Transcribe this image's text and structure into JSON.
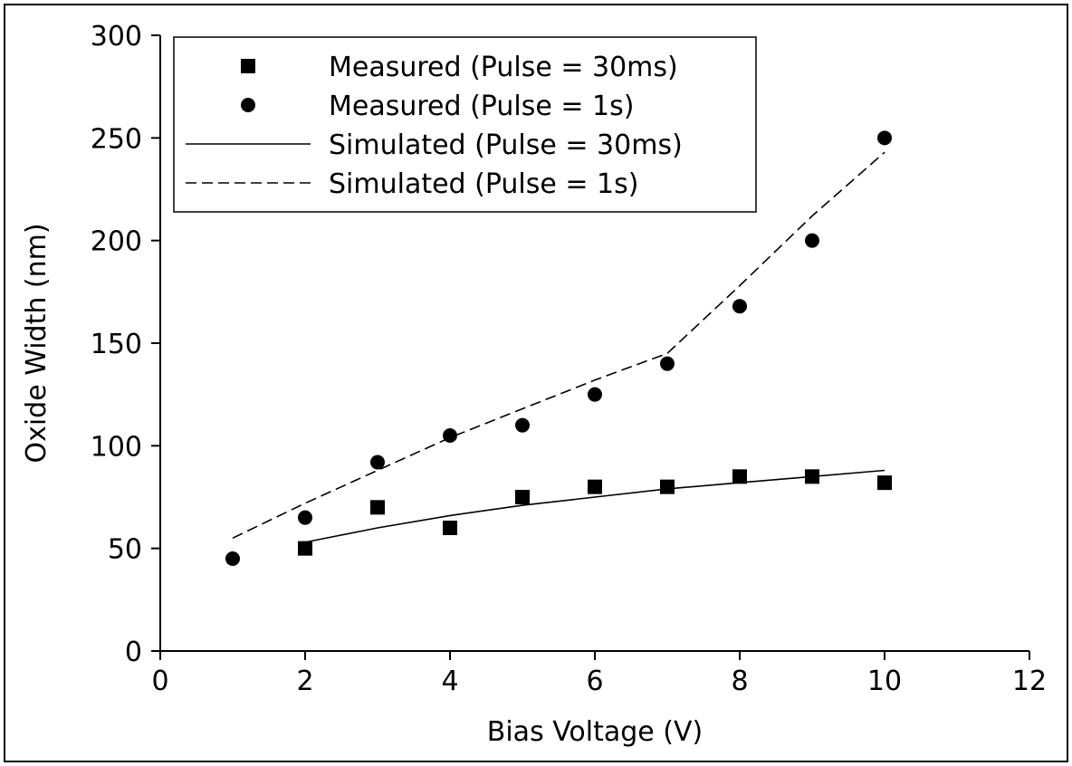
{
  "chart_data": {
    "type": "scatter",
    "title": "",
    "xlabel": "Bias Voltage (V)",
    "ylabel": "Oxide Width (nm)",
    "xlim": [
      0,
      12
    ],
    "ylim": [
      0,
      300
    ],
    "xticks": [
      0,
      2,
      4,
      6,
      8,
      10,
      12
    ],
    "yticks": [
      0,
      50,
      100,
      150,
      200,
      250,
      300
    ],
    "grid": false,
    "legend_position": "top-left",
    "series": [
      {
        "name": "Measured (Pulse = 30ms)",
        "kind": "marker",
        "marker": "square",
        "x": [
          2,
          3,
          4,
          5,
          6,
          7,
          8,
          9,
          10
        ],
        "y": [
          50,
          70,
          60,
          75,
          80,
          80,
          85,
          85,
          82
        ]
      },
      {
        "name": "Measured (Pulse = 1s)",
        "kind": "marker",
        "marker": "circle",
        "x": [
          1,
          2,
          3,
          4,
          5,
          6,
          7,
          8,
          9,
          10
        ],
        "y": [
          45,
          65,
          92,
          105,
          110,
          125,
          140,
          168,
          200,
          250
        ]
      },
      {
        "name": "Simulated (Pulse = 30ms)",
        "kind": "line",
        "dash": "solid",
        "x": [
          2,
          3,
          4,
          5,
          6,
          7,
          8,
          9,
          10
        ],
        "y": [
          53,
          60,
          66,
          71,
          75,
          79,
          82,
          85,
          88
        ]
      },
      {
        "name": "Simulated (Pulse = 1s)",
        "kind": "line",
        "dash": "dashed",
        "x": [
          1,
          2,
          3,
          4,
          5,
          6,
          7,
          8,
          9,
          10
        ],
        "y": [
          55,
          72,
          88,
          104,
          118,
          132,
          145,
          178,
          212,
          243
        ]
      }
    ],
    "colors": {
      "ink": "#000000",
      "background": "#ffffff"
    }
  }
}
